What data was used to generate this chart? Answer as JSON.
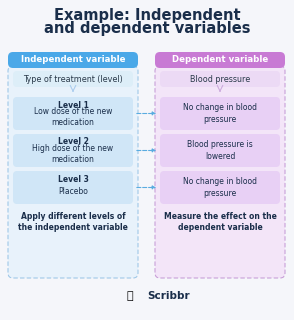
{
  "title_line1": "Example: Independent",
  "title_line2": "and dependent variables",
  "title_color": "#1a2e4a",
  "title_fontsize": 10.5,
  "background_color": "#f5f6fa",
  "left_header_text": "Independent variable",
  "left_header_bg": "#4aa8e8",
  "left_header_text_color": "#ffffff",
  "right_header_text": "Dependent variable",
  "right_header_bg": "#c87ad4",
  "right_header_text_color": "#ffffff",
  "left_subheader_text": "Type of treatment (level)",
  "right_subheader_text": "Blood pressure",
  "left_subheader_bg": "#ddeef8",
  "right_subheader_bg": "#ecdaf5",
  "outer_left_bg": "#e8f2fb",
  "outer_right_bg": "#f3e5f8",
  "level_boxes": [
    {
      "bold": "Level 1",
      "text": "Low dose of the new\nmedication"
    },
    {
      "bold": "Level 2",
      "text": "High dose of the new\nmedication"
    },
    {
      "bold": "Level 3",
      "text": "Placebo"
    }
  ],
  "right_boxes": [
    "No change in blood\npressure",
    "Blood pressure is\nlowered",
    "No change in blood\npressure"
  ],
  "left_box_bg": "#d0e6f7",
  "right_box_bg": "#e8d0f5",
  "left_footer": "Apply different levels of\nthe independent variable",
  "right_footer": "Measure the effect on the\ndependent variable",
  "arrow_color": "#5aace0",
  "down_arrow_left_color": "#aaccee",
  "down_arrow_right_color": "#ccaadd",
  "dashed_border_left": "#a0c8e8",
  "dashed_border_right": "#c8a0d8",
  "scribbr_text_color": "#1a2e4a",
  "scribbr_icon_color": "#e87030"
}
